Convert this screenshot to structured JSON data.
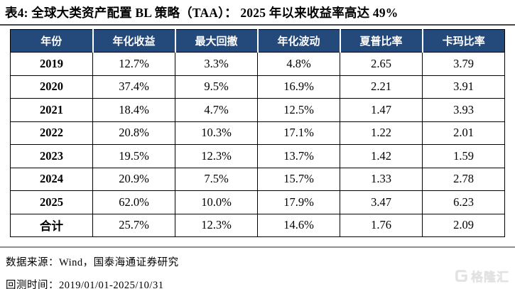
{
  "title": "表4:  全球大类资产配置 BL 策略（TAA）： 2025 年以来收益率高达 49%",
  "chart_data": {
    "type": "table",
    "title": "表4: 全球大类资产配置 BL 策略（TAA）：2025 年以来收益率高达 49%",
    "columns": [
      "年份",
      "年化收益",
      "最大回撤",
      "年化波动",
      "夏普比率",
      "卡玛比率"
    ],
    "rows": [
      [
        "2019",
        "12.7%",
        "3.3%",
        "4.8%",
        "2.65",
        "3.79"
      ],
      [
        "2020",
        "37.4%",
        "9.5%",
        "16.9%",
        "2.21",
        "3.91"
      ],
      [
        "2021",
        "18.4%",
        "4.7%",
        "12.5%",
        "1.47",
        "3.93"
      ],
      [
        "2022",
        "20.8%",
        "10.3%",
        "17.1%",
        "1.22",
        "2.01"
      ],
      [
        "2023",
        "19.5%",
        "12.3%",
        "13.7%",
        "1.42",
        "1.59"
      ],
      [
        "2024",
        "20.9%",
        "7.5%",
        "15.7%",
        "1.33",
        "2.78"
      ],
      [
        "2025",
        "62.0%",
        "10.0%",
        "17.9%",
        "3.47",
        "6.23"
      ],
      [
        "合计",
        "25.7%",
        "12.3%",
        "14.6%",
        "1.76",
        "2.09"
      ]
    ],
    "summary_row_label": "合计"
  },
  "footer": {
    "source": "数据来源：Wind，国泰海通证券研究",
    "backtest_period": "回测时间：2019/01/01-2025/10/31"
  },
  "watermark": {
    "brand": "格隆汇"
  },
  "colors": {
    "header_bg": "#24497B",
    "header_text": "#FFFFFF",
    "body_text": "#000000",
    "table_border": "#000000",
    "top_rule": "#4A4A4A",
    "bottom_rule": "#8F8F8F",
    "watermark": "#E2E2E2"
  }
}
